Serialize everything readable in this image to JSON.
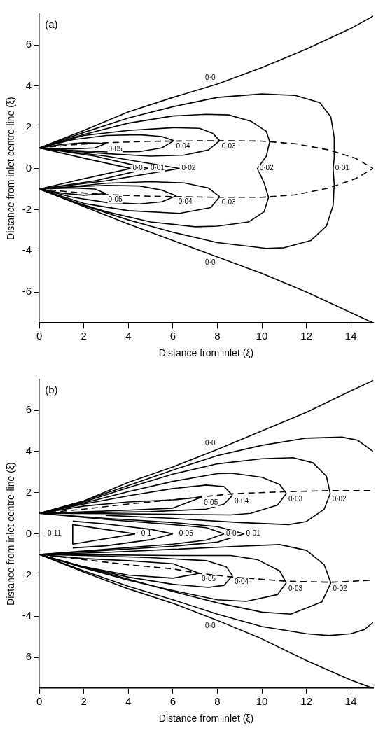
{
  "chart_data": [
    {
      "type": "line",
      "title": "(a)",
      "xlabel": "Distance from inlet (ξ)",
      "ylabel": "Distance from inlet centre-line (ξ)",
      "xlim": [
        0,
        15
      ],
      "ylim": [
        -7.5,
        7.5
      ],
      "xticks": [
        0,
        2,
        4,
        6,
        8,
        10,
        12,
        14
      ],
      "yticks": [
        -6,
        -4,
        -2,
        0,
        2,
        4,
        6
      ],
      "grid": false,
      "legend": false,
      "marker": "none",
      "series": [
        {
          "color": "#000000",
          "x": [
            0,
            2,
            4,
            6,
            8,
            10,
            12,
            14,
            15
          ],
          "values": [
            1,
            1.85,
            2.75,
            3.45,
            4.1,
            4.9,
            5.8,
            6.8,
            7.4
          ]
        },
        {
          "color": "#000000",
          "x": [
            0,
            2,
            4,
            6,
            8,
            10,
            12,
            14,
            15
          ],
          "values": [
            -1,
            -1.85,
            -2.7,
            -3.5,
            -4.3,
            -5.1,
            -6.0,
            -7.0,
            -7.5
          ]
        },
        {
          "color": "#000000",
          "x": [
            0,
            2,
            4,
            6,
            8,
            10,
            11.5,
            12.6,
            13.1,
            13.25,
            13.25,
            13.2,
            13.25,
            13.2,
            12.9,
            12.2,
            11,
            10.2,
            8,
            6,
            4,
            2,
            0
          ],
          "values": [
            1,
            1.75,
            2.45,
            3.0,
            3.45,
            3.62,
            3.55,
            3.2,
            2.5,
            1.5,
            0.5,
            0,
            -0.8,
            -1.8,
            -2.8,
            -3.5,
            -3.85,
            -3.88,
            -3.6,
            -3.1,
            -2.5,
            -1.8,
            -1
          ]
        },
        {
          "color": "#000000",
          "x": [
            0,
            2.5,
            4.9
          ],
          "values": [
            1,
            0.6,
            0
          ]
        },
        {
          "color": "#000000",
          "x": [
            0,
            2.5,
            4.9
          ],
          "values": [
            -1,
            -0.6,
            0
          ]
        },
        {
          "color": "#000000",
          "x": [
            0,
            2,
            4,
            6,
            7.5,
            8.5,
            9.5,
            10.2,
            10.35,
            10.2,
            9.8,
            10.1,
            10.3,
            10.1,
            9.4,
            8,
            7,
            5,
            3,
            1.5,
            0
          ],
          "values": [
            1,
            1.65,
            2.2,
            2.55,
            2.63,
            2.6,
            2.3,
            1.8,
            1.3,
            0.6,
            0,
            -0.7,
            -1.4,
            -2.1,
            -2.6,
            -2.8,
            -2.83,
            -2.6,
            -2.1,
            -1.6,
            -1
          ]
        },
        {
          "color": "#000000",
          "x": [
            0,
            3,
            6.3
          ],
          "values": [
            1,
            0.6,
            0
          ]
        },
        {
          "color": "#000000",
          "x": [
            0,
            3,
            6.3
          ],
          "values": [
            -1,
            -0.6,
            0
          ]
        },
        {
          "color": "#000000",
          "x": [
            0,
            2,
            4.1
          ],
          "values": [
            1,
            0.5,
            0
          ]
        },
        {
          "color": "#000000",
          "x": [
            0,
            2,
            4.1
          ],
          "values": [
            -1,
            -0.5,
            0
          ]
        },
        {
          "color": "#000000",
          "x": [
            0,
            2,
            4,
            6,
            7.2,
            7.8,
            8.1
          ],
          "values": [
            1,
            1.6,
            1.85,
            1.98,
            1.95,
            1.7,
            1.35
          ]
        },
        {
          "color": "#000000",
          "x": [
            0,
            1.5,
            3,
            5,
            6.5,
            7.6,
            8.1
          ],
          "values": [
            1,
            0.85,
            0.72,
            0.6,
            0.65,
            0.9,
            1.35
          ]
        },
        {
          "color": "#000000",
          "x": [
            0,
            1.5,
            3,
            4.5,
            5.5,
            6.05
          ],
          "values": [
            1,
            1.4,
            1.6,
            1.64,
            1.55,
            1.35
          ]
        },
        {
          "color": "#000000",
          "x": [
            0,
            1.5,
            3,
            4.5,
            5.5,
            6.05
          ],
          "values": [
            1,
            0.88,
            0.8,
            0.82,
            1.0,
            1.35
          ]
        },
        {
          "color": "#000000",
          "x": [
            0,
            1,
            2,
            3
          ],
          "values": [
            1,
            1.17,
            1.25,
            1.22
          ]
        },
        {
          "color": "#000000",
          "x": [
            0,
            1.5,
            2.5,
            3
          ],
          "values": [
            1,
            0.95,
            1.0,
            1.22
          ]
        },
        {
          "color": "#000000",
          "x": [
            0,
            1.5,
            3,
            5,
            6.5,
            7.6,
            8.1
          ],
          "values": [
            -1,
            -0.88,
            -0.72,
            -0.64,
            -0.7,
            -0.95,
            -1.37
          ]
        },
        {
          "color": "#000000",
          "x": [
            0,
            2,
            4,
            6.3,
            7.7,
            8.1
          ],
          "values": [
            -1,
            -1.7,
            -2.05,
            -2.18,
            -1.9,
            -1.37
          ]
        },
        {
          "color": "#000000",
          "x": [
            0,
            1.5,
            3,
            4.5,
            5.5,
            6.15
          ],
          "values": [
            -1,
            -0.9,
            -0.82,
            -0.85,
            -1.05,
            -1.33
          ]
        },
        {
          "color": "#000000",
          "x": [
            0,
            1.5,
            3,
            4.5,
            5.5,
            6.15
          ],
          "values": [
            -1,
            -1.4,
            -1.65,
            -1.72,
            -1.62,
            -1.33
          ]
        },
        {
          "color": "#000000",
          "x": [
            0,
            1.5,
            2.5,
            3
          ],
          "values": [
            -1,
            -0.95,
            -1.0,
            -1.22
          ]
        },
        {
          "color": "#000000",
          "x": [
            0,
            1,
            2,
            3
          ],
          "values": [
            -1,
            -1.2,
            -1.3,
            -1.22
          ]
        },
        {
          "color": "#000000",
          "line_style": "dashed",
          "x": [
            0,
            1.5,
            3,
            5,
            8,
            10,
            11.5,
            13,
            14.2,
            15
          ],
          "values": [
            1,
            1.15,
            1.25,
            1.32,
            1.35,
            1.33,
            1.2,
            0.9,
            0.5,
            0
          ]
        },
        {
          "color": "#000000",
          "line_style": "dashed",
          "x": [
            0,
            1.5,
            3,
            5,
            8,
            10,
            11.5,
            13,
            14.2,
            15
          ],
          "values": [
            -1,
            -1.15,
            -1.27,
            -1.35,
            -1.4,
            -1.4,
            -1.28,
            -0.95,
            -0.5,
            0
          ]
        }
      ],
      "annotations": [
        {
          "text": "0·0",
          "x": 8,
          "y": 4.1
        },
        {
          "text": "0·0",
          "x": 8,
          "y": -4.3
        },
        {
          "text": "0·05",
          "x": 3,
          "y": 1.22
        },
        {
          "text": "0·04",
          "x": 6.05,
          "y": 1.35
        },
        {
          "text": "0·03",
          "x": 8.1,
          "y": 1.35
        },
        {
          "text": "0·0",
          "x": 4.1,
          "y": 0
        },
        {
          "text": "0·01",
          "x": 4.9,
          "y": 0
        },
        {
          "text": "0·02",
          "x": 6.3,
          "y": 0
        },
        {
          "text": "0·02",
          "x": 9.8,
          "y": 0
        },
        {
          "text": "0·01",
          "x": 13.2,
          "y": 0
        },
        {
          "text": "0·05",
          "x": 3,
          "y": -1.22
        },
        {
          "text": "0·04",
          "x": 6.15,
          "y": -1.33
        },
        {
          "text": "0·03",
          "x": 8.1,
          "y": -1.37
        }
      ]
    },
    {
      "type": "line",
      "title": "(b)",
      "xlabel": "Distance from inlet (ξ)",
      "ylabel": "Distance from inlet centre-line (ξ)",
      "xlim": [
        0,
        15
      ],
      "ylim": [
        -7.5,
        7.5
      ],
      "xticks": [
        0,
        2,
        4,
        6,
        8,
        10,
        12,
        14
      ],
      "yticks": [
        {
          "value": -6,
          "label": "6"
        },
        -4,
        -2,
        0,
        2,
        4,
        6
      ],
      "grid": false,
      "legend": false,
      "marker": "none",
      "series": [
        {
          "color": "#000000",
          "x": [
            0,
            2,
            4,
            6,
            8,
            10,
            12,
            14,
            15
          ],
          "values": [
            1,
            1.6,
            2.5,
            3.25,
            4.1,
            5.0,
            5.9,
            6.95,
            7.45
          ]
        },
        {
          "color": "#000000",
          "x": [
            0,
            2,
            4,
            6,
            8,
            10,
            12,
            14,
            15
          ],
          "values": [
            -1,
            -1.86,
            -2.67,
            -3.37,
            -4.2,
            -5.1,
            -6.15,
            -7.1,
            -7.5
          ]
        },
        {
          "color": "#000000",
          "x": [
            0,
            2,
            4,
            6,
            8,
            10,
            12,
            13.6,
            14.3,
            15
          ],
          "values": [
            1,
            1.6,
            2.35,
            3.1,
            3.8,
            4.3,
            4.65,
            4.7,
            4.55,
            4.0
          ]
        },
        {
          "color": "#000000",
          "x": [
            0,
            3,
            6,
            8,
            9.2
          ],
          "values": [
            1,
            0.75,
            0.55,
            0.35,
            0
          ]
        },
        {
          "color": "#000000",
          "x": [
            0,
            3,
            6,
            8,
            9.2
          ],
          "values": [
            -1,
            -0.8,
            -0.6,
            -0.4,
            0
          ]
        },
        {
          "color": "#000000",
          "x": [
            0,
            2,
            4,
            6,
            8,
            10,
            12,
            13,
            14,
            14.6,
            15
          ],
          "values": [
            -1,
            -1.8,
            -2.55,
            -3.2,
            -3.9,
            -4.5,
            -4.85,
            -4.94,
            -4.85,
            -4.65,
            -4.3
          ]
        },
        {
          "color": "#000000",
          "x": [
            0,
            2,
            4,
            6,
            8,
            10,
            11.4,
            12.3,
            12.9,
            13.07,
            12.8,
            12,
            11.2,
            9,
            6,
            3
          ],
          "values": [
            1,
            1.55,
            2.25,
            2.9,
            3.4,
            3.65,
            3.7,
            3.45,
            2.8,
            1.96,
            1.2,
            0.6,
            0.45,
            0.55,
            0.75,
            0.9
          ]
        },
        {
          "color": "#000000",
          "x": [
            0,
            3,
            6,
            9,
            10.8,
            12,
            12.8,
            13.1,
            12.7,
            11.3,
            10,
            8,
            6,
            4,
            2
          ],
          "values": [
            -1,
            -0.9,
            -0.75,
            -0.6,
            -0.52,
            -0.8,
            -1.5,
            -2.38,
            -3.3,
            -3.9,
            -3.8,
            -3.35,
            -2.8,
            -2.2,
            -1.6
          ]
        },
        {
          "color": "#000000",
          "x": [
            0,
            2,
            4,
            6,
            8,
            8.6,
            10,
            10.8,
            11.1
          ],
          "values": [
            1,
            1.5,
            2.05,
            2.55,
            2.93,
            2.95,
            2.75,
            2.4,
            1.96
          ]
        },
        {
          "color": "#000000",
          "x": [
            0,
            3,
            6,
            8.6,
            9.5,
            10.7,
            11.1
          ],
          "values": [
            1,
            0.98,
            0.95,
            0.92,
            1.0,
            1.4,
            1.96
          ]
        },
        {
          "color": "#000000",
          "x": [
            0,
            3,
            6,
            8.6,
            9.8,
            10.8,
            11.1
          ],
          "values": [
            -1,
            -1.02,
            -1.05,
            -1.05,
            -1.25,
            -1.8,
            -2.38
          ]
        },
        {
          "color": "#000000",
          "x": [
            0,
            2,
            4,
            6,
            8,
            9.3,
            10.7,
            11.1
          ],
          "values": [
            -1,
            -1.65,
            -2.25,
            -2.75,
            -3.2,
            -3.28,
            -2.95,
            -2.38
          ]
        },
        {
          "color": "#000000",
          "x": [
            0,
            2,
            4,
            6,
            7.5,
            8.3,
            8.68
          ],
          "values": [
            1,
            1.45,
            1.85,
            2.2,
            2.37,
            2.3,
            1.87
          ]
        },
        {
          "color": "#000000",
          "x": [
            0,
            2,
            5,
            7.5,
            8.3,
            8.68
          ],
          "values": [
            1,
            1.02,
            1.08,
            1.2,
            1.45,
            1.87
          ]
        },
        {
          "color": "#000000",
          "x": [
            0,
            2,
            5,
            7.5,
            8.4,
            8.68
          ],
          "values": [
            -1,
            -1.05,
            -1.15,
            -1.3,
            -1.6,
            -2.03
          ]
        },
        {
          "color": "#000000",
          "x": [
            0,
            2,
            4,
            6,
            7.6,
            8.3,
            8.68
          ],
          "values": [
            -1,
            -1.6,
            -2.1,
            -2.45,
            -2.6,
            -2.5,
            -2.03
          ]
        },
        {
          "color": "#000000",
          "x": [
            0,
            2,
            4,
            6,
            7.3
          ],
          "values": [
            1,
            1.35,
            1.55,
            1.65,
            1.79
          ]
        },
        {
          "color": "#000000",
          "x": [
            0,
            2,
            4,
            6,
            7.3
          ],
          "values": [
            1,
            1.07,
            1.15,
            1.25,
            1.79
          ]
        },
        {
          "color": "#000000",
          "x": [
            0,
            2,
            4,
            6,
            7.2
          ],
          "values": [
            -1,
            -1.2,
            -1.3,
            -1.45,
            -1.92
          ]
        },
        {
          "color": "#000000",
          "x": [
            0,
            2,
            4,
            6,
            7.2
          ],
          "values": [
            -1,
            -1.6,
            -2.0,
            -2.15,
            -1.92
          ]
        },
        {
          "color": "#000000",
          "x": [
            1.5,
            4.3
          ],
          "values": [
            0.45,
            0
          ]
        },
        {
          "color": "#000000",
          "x": [
            1.5,
            4.3
          ],
          "values": [
            -0.5,
            0
          ]
        },
        {
          "color": "#000000",
          "x": [
            1.5,
            1.5
          ],
          "values": [
            0.45,
            -0.5
          ]
        },
        {
          "color": "#000000",
          "x": [
            1.5,
            3,
            5,
            6
          ],
          "values": [
            0.62,
            0.48,
            0.22,
            0
          ]
        },
        {
          "color": "#000000",
          "x": [
            1.5,
            3,
            5,
            6
          ],
          "values": [
            -0.68,
            -0.58,
            -0.28,
            0
          ]
        },
        {
          "color": "#000000",
          "x": [
            0,
            3,
            6,
            7.5,
            8.3
          ],
          "values": [
            1,
            0.7,
            0.45,
            0.3,
            0
          ]
        },
        {
          "color": "#000000",
          "x": [
            0,
            3,
            6,
            7.5,
            8.3
          ],
          "values": [
            -1,
            -0.75,
            -0.5,
            -0.3,
            0
          ]
        },
        {
          "color": "#000000",
          "line_style": "dashed",
          "x": [
            0,
            2,
            4,
            6,
            7.3,
            8.7,
            11.1,
            13,
            15
          ],
          "values": [
            1,
            1.2,
            1.45,
            1.65,
            1.8,
            1.95,
            2.05,
            2.1,
            2.1
          ]
        },
        {
          "color": "#000000",
          "line_style": "dashed",
          "x": [
            0,
            2,
            4,
            6,
            7.2,
            8.7,
            11.1,
            13.1,
            15
          ],
          "values": [
            -1,
            -1.25,
            -1.5,
            -1.7,
            -1.92,
            -2.1,
            -2.3,
            -2.35,
            -2.25
          ]
        }
      ],
      "annotations": [
        {
          "text": "0·0",
          "x": 8,
          "y": 4.1
        },
        {
          "text": "0·05",
          "x": 7.3,
          "y": 1.79
        },
        {
          "text": "0·04",
          "x": 8.68,
          "y": 1.87
        },
        {
          "text": "0·03",
          "x": 11.1,
          "y": 1.96
        },
        {
          "text": "0·02",
          "x": 13.07,
          "y": 1.96
        },
        "−0·11",
        {
          "text": "−0·1",
          "x": 4.3,
          "y": 0
        },
        {
          "text": "−0·05",
          "x": 6,
          "y": 0
        },
        {
          "text": "0·0",
          "x": 8.3,
          "y": 0
        },
        {
          "text": "0·01",
          "x": 9.2,
          "y": 0
        },
        {
          "text": "0·05",
          "x": 7.2,
          "y": -1.92
        },
        {
          "text": "0·04",
          "x": 8.68,
          "y": -2.03
        },
        {
          "text": "0·03",
          "x": 11.1,
          "y": -2.38
        },
        {
          "text": "0·02",
          "x": 13.1,
          "y": -2.38
        },
        {
          "text": "0·0",
          "x": 8,
          "y": -4.2
        }
      ]
    }
  ]
}
